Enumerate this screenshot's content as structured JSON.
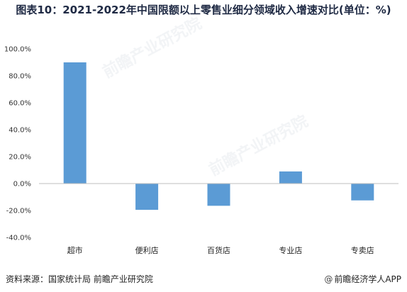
{
  "title": "图表10：2021-2022年中国限额以上零售业细分领域收入增速对比(单位：%)",
  "source": "资料来源：国家统计局 前瞻产业研究院",
  "brand": "前瞻经济学人APP",
  "brand_symbol": "@",
  "watermark": "前瞻产业研究院",
  "colors": {
    "bar": "#5b9bd5",
    "zero_line": "#bfbfbf",
    "axis_text": "#333333"
  },
  "chart_data": {
    "type": "bar",
    "title": "图表10：2021-2022年中国限额以上零售业细分领域收入增速对比(单位：%)",
    "categories": [
      "超市",
      "便利店",
      "百货店",
      "专业店",
      "专卖店"
    ],
    "values": [
      90.0,
      -19.5,
      -16.5,
      9.0,
      -12.5
    ],
    "ylim": [
      -40,
      100
    ],
    "yticks": [
      100,
      80,
      60,
      40,
      20,
      0,
      -20,
      -40
    ],
    "ytick_labels": [
      "100.0%",
      "80.0%",
      "60.0%",
      "40.0%",
      "20.0%",
      "0.0%",
      "-20.0%",
      "-40.0%"
    ],
    "xlabel": "",
    "ylabel": "",
    "grid": false,
    "legend": "none"
  }
}
